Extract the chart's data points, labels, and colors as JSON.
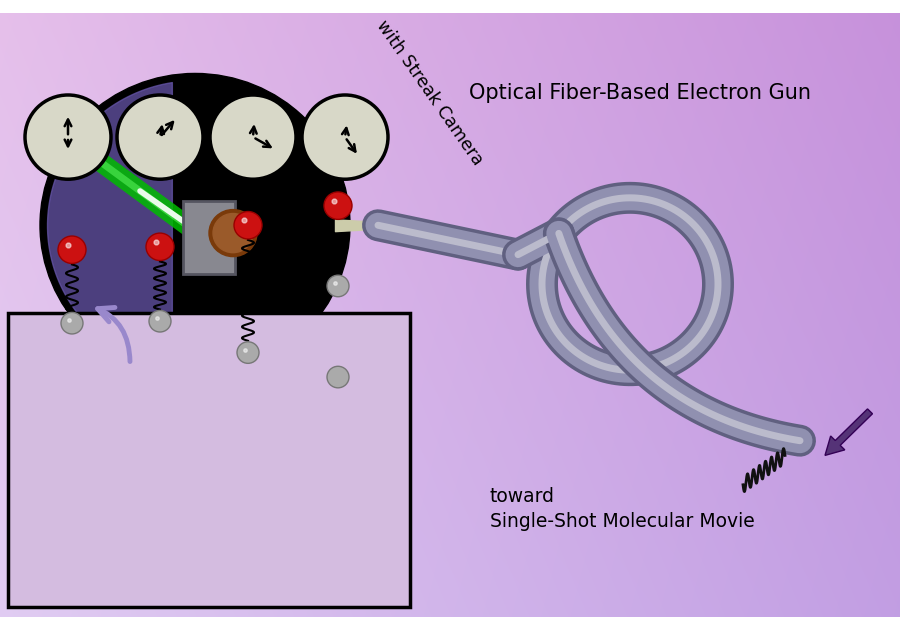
{
  "fig_width": 9.0,
  "fig_height": 6.17,
  "title_label1": "Optical Fiber-Based Electron Gun",
  "title_label2": "with Streak Camera",
  "label_toward": "toward\nSingle-Shot Molecular Movie",
  "fiber_color": "#9090b0",
  "fiber_dark": "#606080",
  "fiber_light": "#bbbbcc",
  "clock_face_color": "#d8d8c8",
  "red_ball_color": "#cc1111",
  "gray_ball_color": "#aaaaaa",
  "arrow_color": "#9988cc",
  "purple_arrow_color": "#553377"
}
